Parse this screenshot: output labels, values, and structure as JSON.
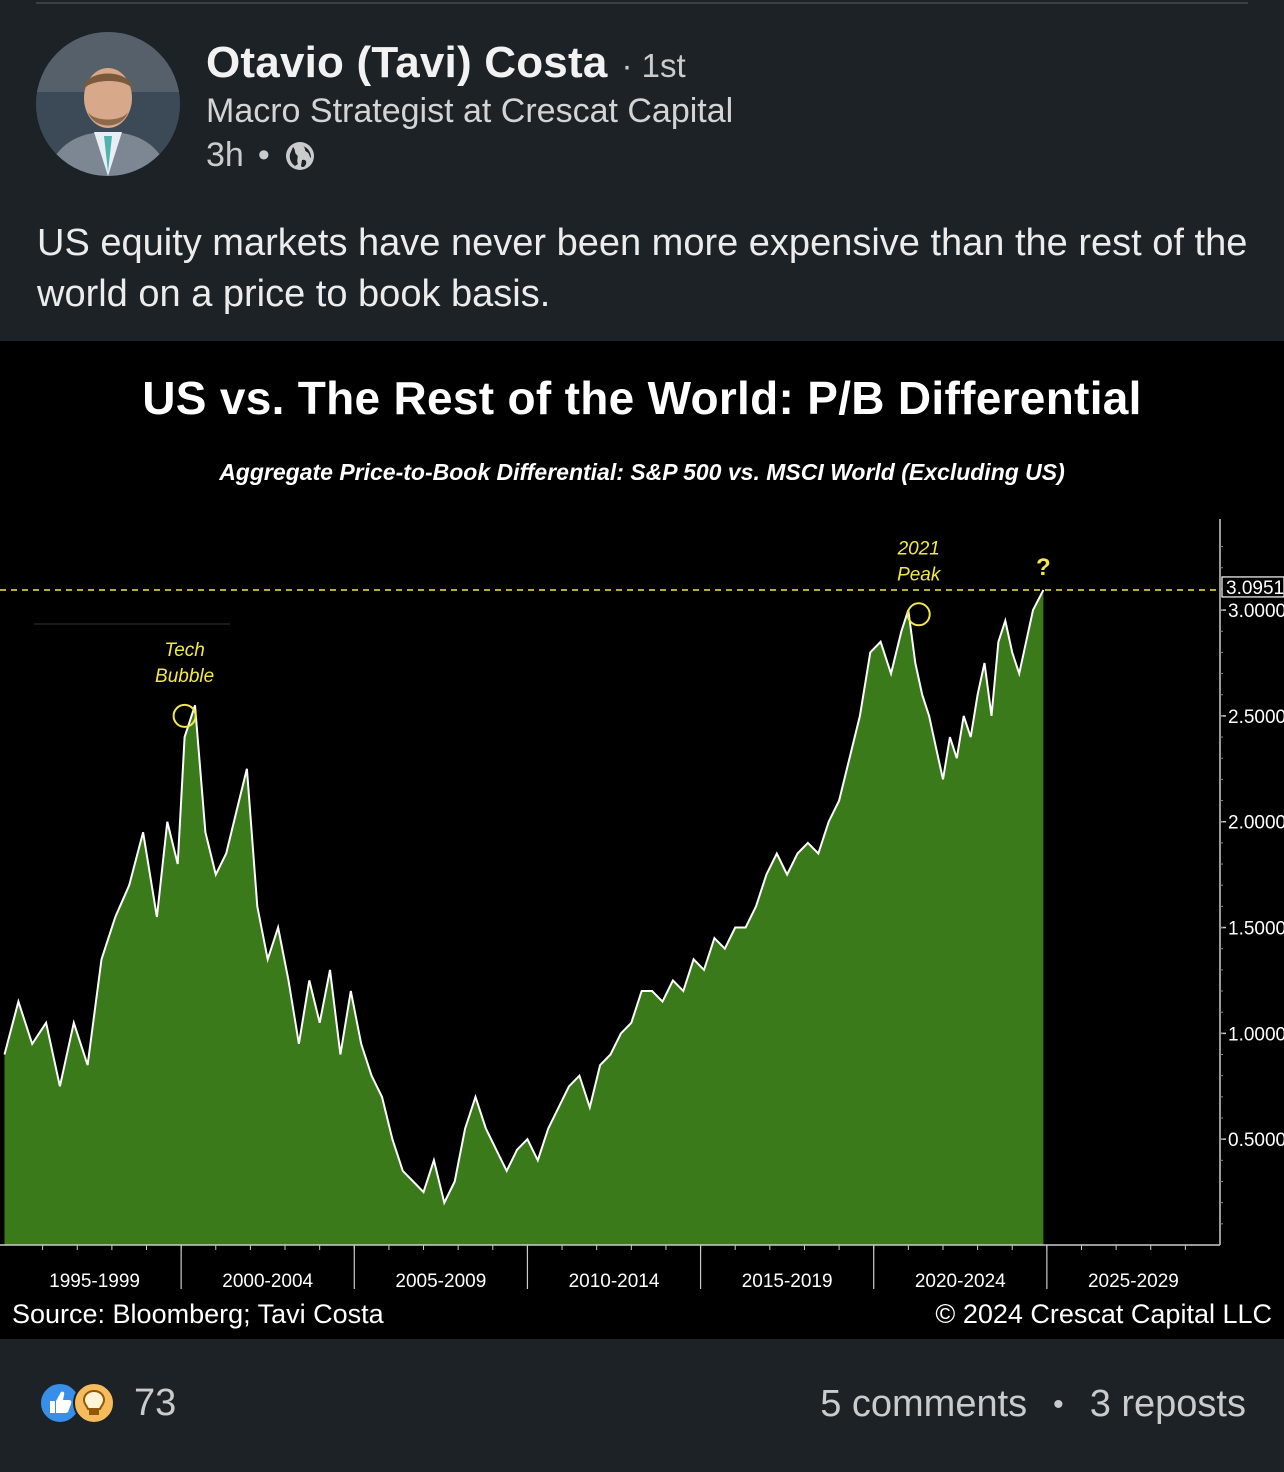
{
  "author": {
    "name": "Otavio (Tavi) Costa",
    "degree": "· 1st",
    "headline": "Macro Strategist at Crescat Capital",
    "time": "3h",
    "visibility_icon": "globe-icon"
  },
  "post": {
    "text": "US equity markets have never been more expensive than the rest of the world on a price to book basis."
  },
  "chart_data": {
    "type": "area",
    "title": "US vs. The Rest of the World: P/B Differential",
    "subtitle": "Aggregate Price-to-Book Differential: S&P 500 vs. MSCI World (Excluding US)",
    "x_categories": [
      "1995-1999",
      "2000-2004",
      "2005-2009",
      "2010-2014",
      "2015-2019",
      "2020-2024",
      "2025-2029"
    ],
    "x_range": [
      1995.0,
      2030.0
    ],
    "y_ticks": [
      "0.5000",
      "1.0000",
      "1.5000",
      "2.0000",
      "2.5000",
      "3.0000"
    ],
    "ylim": [
      0.0,
      3.35
    ],
    "y_axis_position": "right",
    "last_value_label": "3.0951",
    "last_value": 3.0951,
    "reference_line": {
      "value": 3.0951,
      "style": "dashed"
    },
    "annotations": [
      {
        "text_lines": [
          "Tech",
          "Bubble"
        ],
        "x": 2000.1,
        "y": 2.5
      },
      {
        "text_lines": [
          "2021",
          "Peak"
        ],
        "x": 2021.3,
        "y": 2.98
      },
      {
        "text": "?",
        "x": 2024.9,
        "y": 3.1
      }
    ],
    "series": [
      {
        "x": [
          1994.9,
          1995.3,
          1995.7,
          1996.1,
          1996.5,
          1996.9,
          1997.3,
          1997.7,
          1998.1,
          1998.5,
          1998.9,
          1999.3,
          1999.6,
          1999.9,
          2000.1,
          2000.4,
          2000.7,
          2001.0,
          2001.3,
          2001.6,
          2001.9,
          2002.2,
          2002.5,
          2002.8,
          2003.1,
          2003.4,
          2003.7,
          2004.0,
          2004.3,
          2004.6,
          2004.9,
          2005.2,
          2005.5,
          2005.8,
          2006.1,
          2006.4,
          2006.7,
          2007.0,
          2007.3,
          2007.6,
          2007.9,
          2008.2,
          2008.5,
          2008.8,
          2009.1,
          2009.4,
          2009.7,
          2010.0,
          2010.3,
          2010.6,
          2010.9,
          2011.2,
          2011.5,
          2011.8,
          2012.1,
          2012.4,
          2012.7,
          2013.0,
          2013.3,
          2013.6,
          2013.9,
          2014.2,
          2014.5,
          2014.8,
          2015.1,
          2015.4,
          2015.7,
          2016.0,
          2016.3,
          2016.6,
          2016.9,
          2017.2,
          2017.5,
          2017.8,
          2018.1,
          2018.4,
          2018.7,
          2019.0,
          2019.3,
          2019.6,
          2019.9,
          2020.2,
          2020.5,
          2020.8,
          2021.0,
          2021.2,
          2021.4,
          2021.6,
          2021.8,
          2022.0,
          2022.2,
          2022.4,
          2022.6,
          2022.8,
          2023.0,
          2023.2,
          2023.4,
          2023.6,
          2023.8,
          2024.0,
          2024.2,
          2024.4,
          2024.6,
          2024.9
        ],
        "y": [
          0.9,
          1.15,
          0.95,
          1.05,
          0.75,
          1.05,
          0.85,
          1.35,
          1.55,
          1.7,
          1.95,
          1.55,
          2.0,
          1.8,
          2.4,
          2.55,
          1.95,
          1.75,
          1.85,
          2.05,
          2.25,
          1.6,
          1.35,
          1.5,
          1.25,
          0.95,
          1.25,
          1.05,
          1.3,
          0.9,
          1.2,
          0.95,
          0.8,
          0.7,
          0.5,
          0.35,
          0.3,
          0.25,
          0.4,
          0.2,
          0.3,
          0.55,
          0.7,
          0.55,
          0.45,
          0.35,
          0.45,
          0.5,
          0.4,
          0.55,
          0.65,
          0.75,
          0.8,
          0.65,
          0.85,
          0.9,
          1.0,
          1.05,
          1.2,
          1.2,
          1.15,
          1.25,
          1.2,
          1.35,
          1.3,
          1.45,
          1.4,
          1.5,
          1.5,
          1.6,
          1.75,
          1.85,
          1.75,
          1.85,
          1.9,
          1.85,
          2.0,
          2.1,
          2.3,
          2.5,
          2.8,
          2.85,
          2.7,
          2.9,
          3.0,
          2.75,
          2.6,
          2.5,
          2.35,
          2.2,
          2.4,
          2.3,
          2.5,
          2.4,
          2.6,
          2.75,
          2.5,
          2.85,
          2.95,
          2.8,
          2.7,
          2.85,
          3.0,
          3.0951
        ]
      }
    ]
  },
  "chart_footer": {
    "source": "Source: Bloomberg; Tavi Costa",
    "copyright": "© 2024 Crescat Capital LLC"
  },
  "social": {
    "reaction_icons": [
      "like-icon",
      "insightful-icon"
    ],
    "reactions_count": "73",
    "comments": "5 comments",
    "separator": "•",
    "reposts": "3 reposts"
  },
  "colors": {
    "background": "#1d2226",
    "chart_background": "#000000",
    "area_fill": "#3b7a1a",
    "line": "#ffffff",
    "annotation": "#f2e84a",
    "like_blue": "#378fe9",
    "insightful_yellow": "#f5bb5c"
  }
}
